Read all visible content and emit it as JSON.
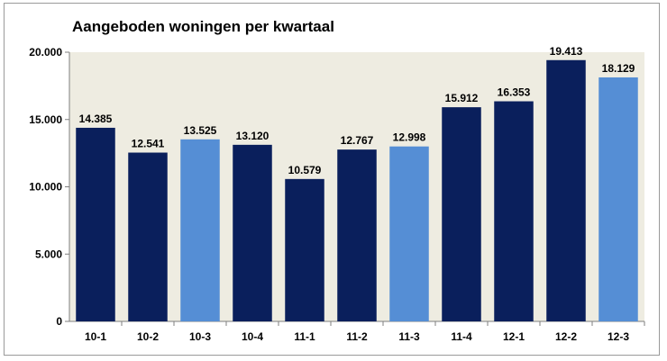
{
  "chart_data": {
    "type": "bar",
    "title": "Aangeboden woningen per kwartaal",
    "xlabel": "",
    "ylabel": "",
    "categories": [
      "10-1",
      "10-2",
      "10-3",
      "10-4",
      "11-1",
      "11-2",
      "11-3",
      "11-4",
      "12-1",
      "12-2",
      "12-3"
    ],
    "values": [
      14385,
      12541,
      13525,
      13120,
      10579,
      12767,
      12998,
      15912,
      16353,
      19413,
      18129
    ],
    "value_labels": [
      "14.385",
      "12.541",
      "13.525",
      "13.120",
      "10.579",
      "12.767",
      "12.998",
      "15.912",
      "16.353",
      "19.413",
      "18.129"
    ],
    "bar_colors": [
      "#0a1f5c",
      "#0a1f5c",
      "#558ed5",
      "#0a1f5c",
      "#0a1f5c",
      "#0a1f5c",
      "#558ed5",
      "#0a1f5c",
      "#0a1f5c",
      "#0a1f5c",
      "#558ed5"
    ],
    "ylim": [
      0,
      20000
    ],
    "yticks": [
      0,
      5000,
      10000,
      15000,
      20000
    ],
    "ytick_labels": [
      "0",
      "5.000",
      "10.000",
      "15.000",
      "20.000"
    ],
    "grid": false,
    "legend": "none",
    "plot_background": "#eeece1"
  }
}
